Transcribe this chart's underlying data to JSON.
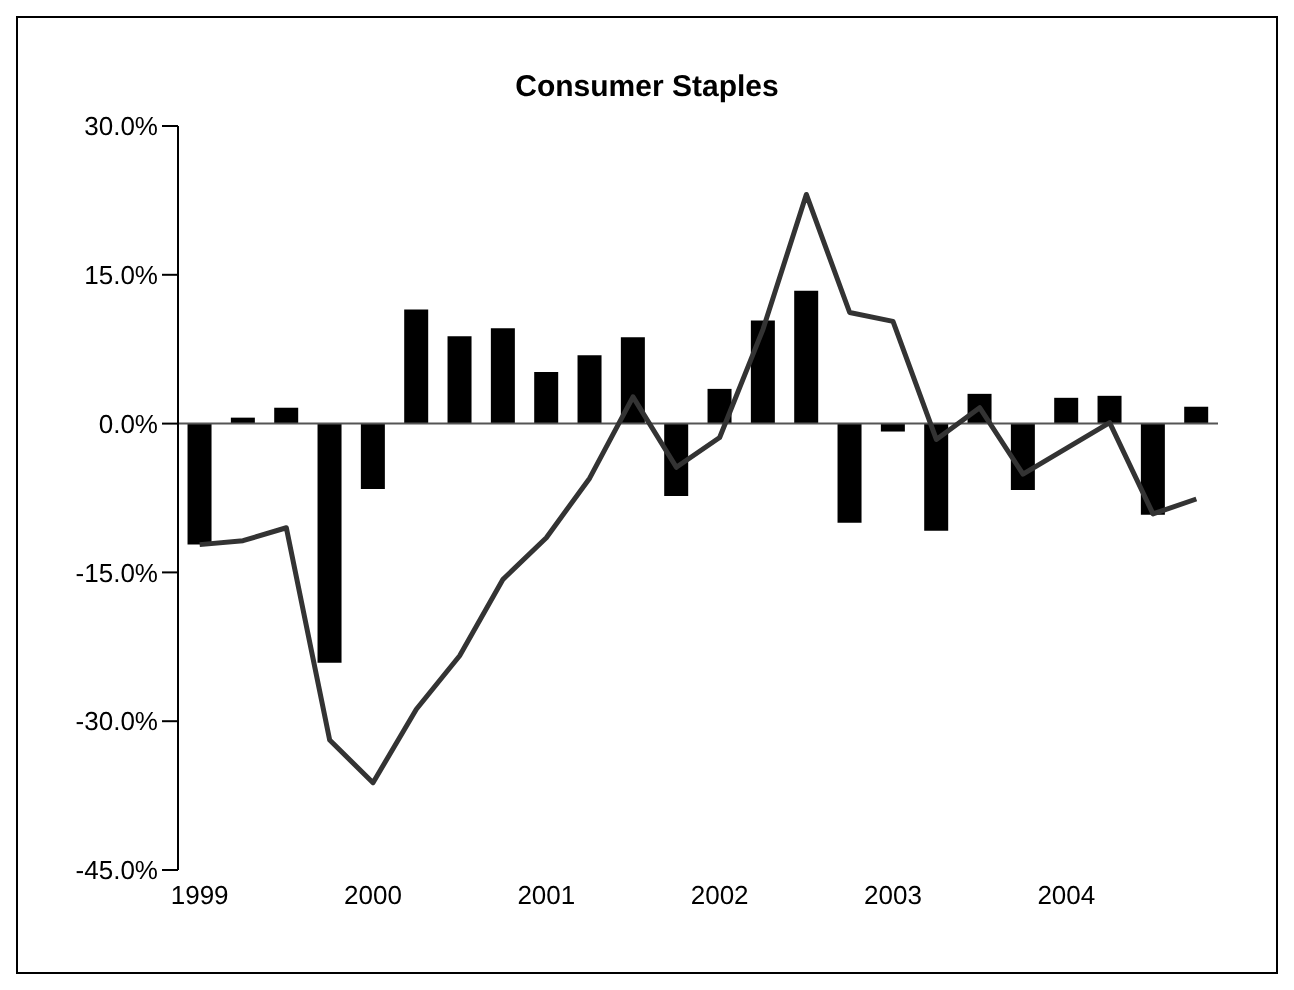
{
  "chart_data": {
    "type": "bar",
    "title": "Consumer Staples",
    "categories": [
      "1999",
      null,
      null,
      null,
      "2000",
      null,
      null,
      null,
      "2001",
      null,
      null,
      null,
      "2002",
      null,
      null,
      null,
      "2003",
      null,
      null,
      null,
      "2004",
      null,
      null,
      null
    ],
    "series": [
      {
        "color": "#000000",
        "values": [
          -12.2,
          0.6,
          1.6,
          -24.1,
          -6.6,
          11.5,
          8.8,
          9.6,
          5.2,
          6.9,
          8.7,
          -7.3,
          3.5,
          10.4,
          13.4,
          -10.0,
          -0.8,
          -10.8,
          3.0,
          -6.7,
          2.6,
          2.8,
          -9.2,
          1.7
        ]
      },
      {
        "type": "line",
        "color": "#333333",
        "values": [
          -12.2,
          -11.8,
          -10.5,
          -31.9,
          -36.2,
          -28.8,
          -23.4,
          -15.7,
          -11.5,
          -5.5,
          2.7,
          -4.4,
          -1.4,
          9.5,
          23.1,
          11.2,
          10.3,
          -1.6,
          1.6,
          -5.1,
          -2.5,
          0.1,
          -9.1,
          -7.6
        ]
      }
    ],
    "ylim": [
      -45,
      30
    ],
    "yticks": [
      {
        "value": -45,
        "label": "-45.0%"
      },
      {
        "value": -30,
        "label": "-30.0%"
      },
      {
        "value": -15,
        "label": "-15.0%"
      },
      {
        "value": 0,
        "label": "0.0%"
      },
      {
        "value": 15,
        "label": "15.0%"
      },
      {
        "value": 30,
        "label": "30.0%"
      }
    ],
    "legend": false,
    "marker": "none"
  }
}
